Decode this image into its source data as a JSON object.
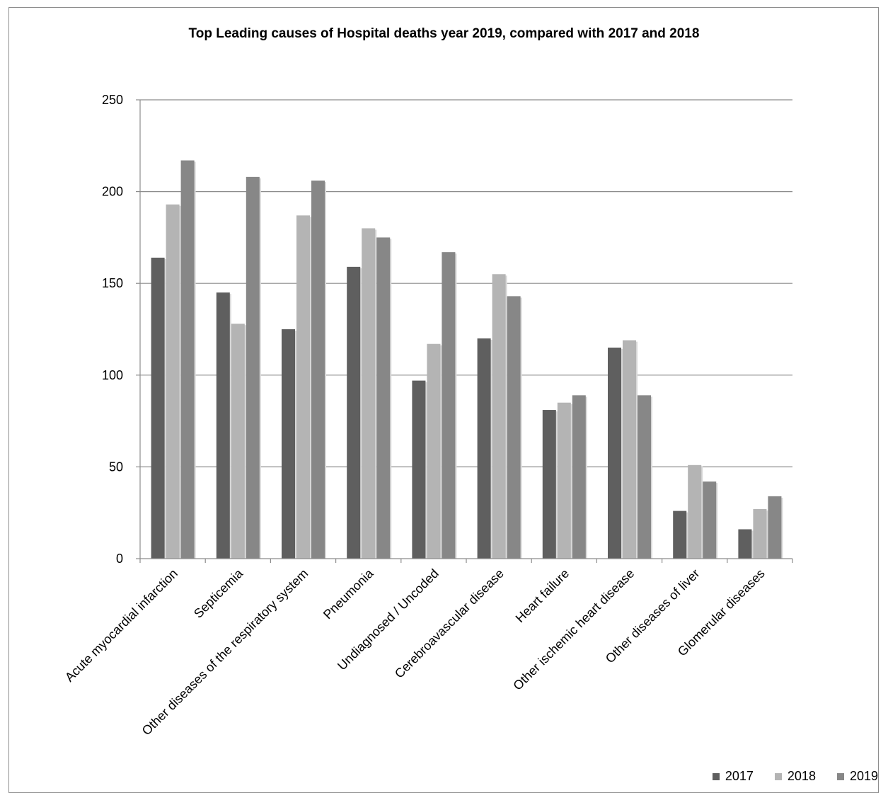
{
  "chart_data": {
    "type": "bar",
    "title": "Top Leading causes of Hospital deaths year 2019, compared with 2017 and 2018",
    "xlabel": "",
    "ylabel": "",
    "ylim": [
      0,
      250
    ],
    "yticks": [
      0,
      50,
      100,
      150,
      200,
      250
    ],
    "grid": true,
    "legend_position": "bottom-right",
    "categories": [
      "Acute myocardial infarction",
      "Septicemia",
      "Other diseases of the respiratory system",
      "Pneumonia",
      "Undiagnosed / Uncoded",
      "Cerebroavascular disease",
      "Heart failure",
      "Other ischemic heart disease",
      "Other diseases of liver",
      "Glomerular diseases"
    ],
    "series": [
      {
        "name": "2017",
        "color": "#5f5f5f",
        "values": [
          164,
          145,
          125,
          159,
          97,
          120,
          81,
          115,
          26,
          16
        ]
      },
      {
        "name": "2018",
        "color": "#b4b4b4",
        "values": [
          193,
          128,
          187,
          180,
          117,
          155,
          85,
          119,
          51,
          27
        ]
      },
      {
        "name": "2019",
        "color": "#878787",
        "values": [
          217,
          208,
          206,
          175,
          167,
          143,
          89,
          89,
          42,
          34
        ]
      }
    ]
  }
}
